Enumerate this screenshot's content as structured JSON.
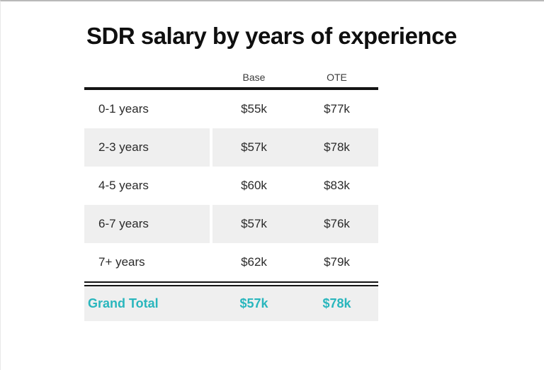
{
  "page": {
    "title": "SDR salary by years of experience"
  },
  "table": {
    "columns": {
      "base": "Base",
      "ote": "OTE"
    },
    "rows": [
      {
        "label": "0-1 years",
        "base": "$55k",
        "ote": "$77k",
        "shaded": false
      },
      {
        "label": "2-3 years",
        "base": "$57k",
        "ote": "$78k",
        "shaded": true
      },
      {
        "label": "4-5 years",
        "base": "$60k",
        "ote": "$83k",
        "shaded": false
      },
      {
        "label": "6-7 years",
        "base": "$57k",
        "ote": "$76k",
        "shaded": true
      },
      {
        "label": "7+ years",
        "base": "$62k",
        "ote": "$79k",
        "shaded": false
      }
    ],
    "total": {
      "label": "Grand Total",
      "base": "$57k",
      "ote": "$78k"
    }
  },
  "colors": {
    "accent_teal": "#29b6bd",
    "row_shade": "#efefef",
    "rule_black": "#141414",
    "top_edge_gray": "#b9b9b9"
  },
  "chart_data": {
    "type": "table",
    "title": "SDR salary by years of experience",
    "categories": [
      "0-1 years",
      "2-3 years",
      "4-5 years",
      "6-7 years",
      "7+ years",
      "Grand Total"
    ],
    "series": [
      {
        "name": "Base",
        "values": [
          55,
          57,
          60,
          57,
          62,
          57
        ]
      },
      {
        "name": "OTE",
        "values": [
          77,
          78,
          83,
          76,
          79,
          78
        ]
      }
    ],
    "unit": "thousand USD",
    "layout": {
      "value_alignment": "center",
      "alternating_row_shading": true,
      "total_row_highlighted": true
    }
  }
}
